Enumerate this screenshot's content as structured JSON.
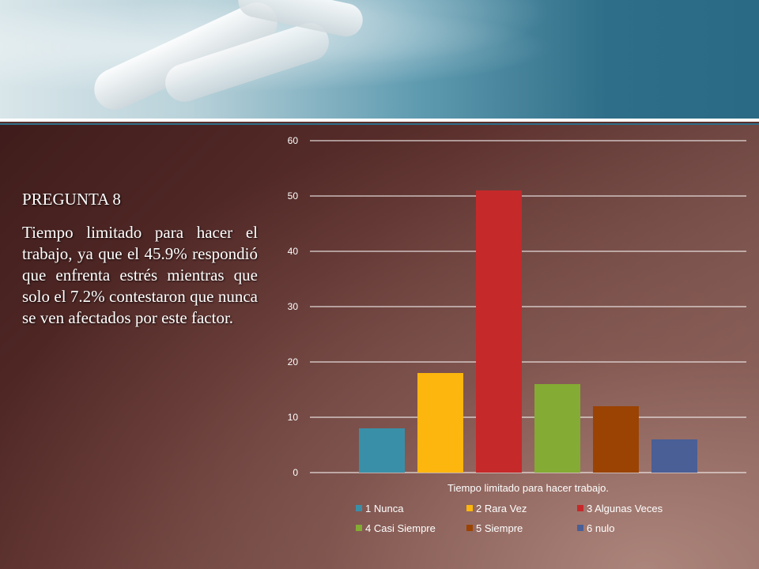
{
  "slide": {
    "question_title": "PREGUNTA 8",
    "question_body": "Tiempo limitado para hacer el trabajo,  ya que el 45.9% respondió que  enfrenta estrés mientras que solo el 7.2% contestaron que nunca se ven afectados por este factor."
  },
  "colors": {
    "banner_accent": "#2f6e88",
    "background": "#5a2f2c"
  },
  "chart_data": {
    "type": "bar",
    "category": "Tiempo limitado para hacer trabajo.",
    "xlabel": "Tiempo limitado para hacer trabajo.",
    "ylim": [
      0,
      60
    ],
    "yticks": [
      0,
      10,
      20,
      30,
      40,
      50,
      60
    ],
    "grid": true,
    "legend_position": "bottom",
    "series": [
      {
        "name": "1 Nunca",
        "value": 8,
        "color": "#3a8fa8"
      },
      {
        "name": "2 Rara Vez",
        "value": 18,
        "color": "#fcb60e"
      },
      {
        "name": "3 Algunas Veces",
        "value": 51,
        "color": "#c6292a"
      },
      {
        "name": "4 Casi Siempre",
        "value": 16,
        "color": "#84ab33"
      },
      {
        "name": "5 Siempre",
        "value": 12,
        "color": "#9b4303"
      },
      {
        "name": "6 nulo",
        "value": 6,
        "color": "#4a5f96"
      }
    ]
  }
}
